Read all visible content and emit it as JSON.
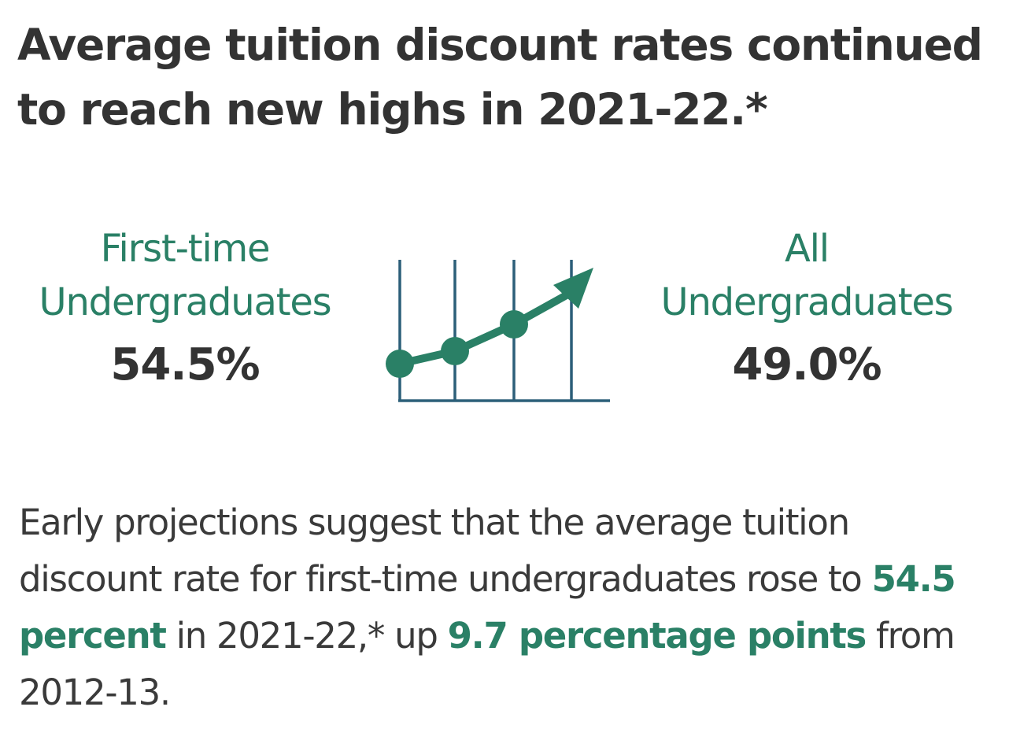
{
  "title": {
    "line1": "Average tuition discount rates continued",
    "line2": "to reach new highs in 2021-22.*"
  },
  "stats": {
    "first_time": {
      "label_line1": "First-time",
      "label_line2": "Undergraduates",
      "value": "54.5%"
    },
    "all": {
      "label_line1": "All",
      "label_line2": "Undergraduates",
      "value": "49.0%"
    }
  },
  "graphic": {
    "icon": "trend-up-icon",
    "color": "#2a8066",
    "axis_color": "#2c5f79"
  },
  "description": {
    "part1": "Early projections suggest that the average tuition discount rate for first-time undergraduates rose to ",
    "highlight1": "54.5 percent",
    "part2": " in 2021-22,* up ",
    "highlight2": "9.7 percentage points",
    "part3": " from 2012-13."
  },
  "colors": {
    "accent": "#2a8066",
    "text": "#333333"
  }
}
